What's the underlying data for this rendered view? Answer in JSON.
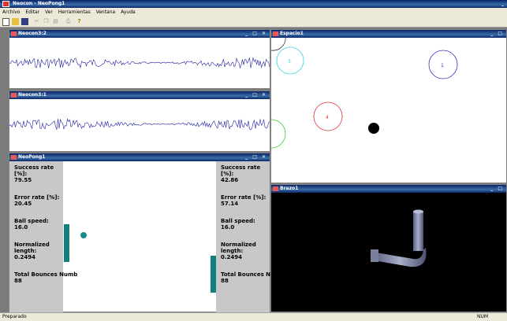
{
  "app": {
    "title": "Neocon - NeoPong1"
  },
  "menu": [
    "Archivo",
    "Editar",
    "Ver",
    "Herramientas",
    "Ventana",
    "Ayuda"
  ],
  "windows": {
    "neocon3c2": {
      "title": "Neocon3:2"
    },
    "neocon3c1": {
      "title": "Neocon3:1"
    },
    "espacio": {
      "title": "Espacio1",
      "circles": [
        "1",
        "3",
        "4"
      ]
    },
    "pong": {
      "title": "NeoPong1",
      "left": {
        "success_label": "Success rate [%]:",
        "success": "79.55",
        "error_label": "Error rate [%]:",
        "error": "20.45",
        "speed_label": "Ball speed:",
        "speed": "16.0",
        "norm_label": "Normalized length:",
        "norm": "0.2494",
        "bounces_label": "Total Bounces Numb",
        "bounces": "88"
      },
      "right": {
        "success_label": "Success rate [%]:",
        "success": "42.86",
        "error_label": "Error rate [%]:",
        "error": "57.14",
        "speed_label": "Ball speed:",
        "speed": "16.0",
        "norm_label": "Normalized length:",
        "norm": "0.2494",
        "bounces_label": "Total Bounces Numb",
        "bounces": "88"
      }
    },
    "brazo": {
      "title": "Brazo1"
    }
  },
  "status": {
    "left": "Preparado",
    "num": "NUM"
  },
  "colors": {
    "paddle": "#137f80",
    "ball": "#1a8a8a",
    "signal": "#2020a0"
  }
}
